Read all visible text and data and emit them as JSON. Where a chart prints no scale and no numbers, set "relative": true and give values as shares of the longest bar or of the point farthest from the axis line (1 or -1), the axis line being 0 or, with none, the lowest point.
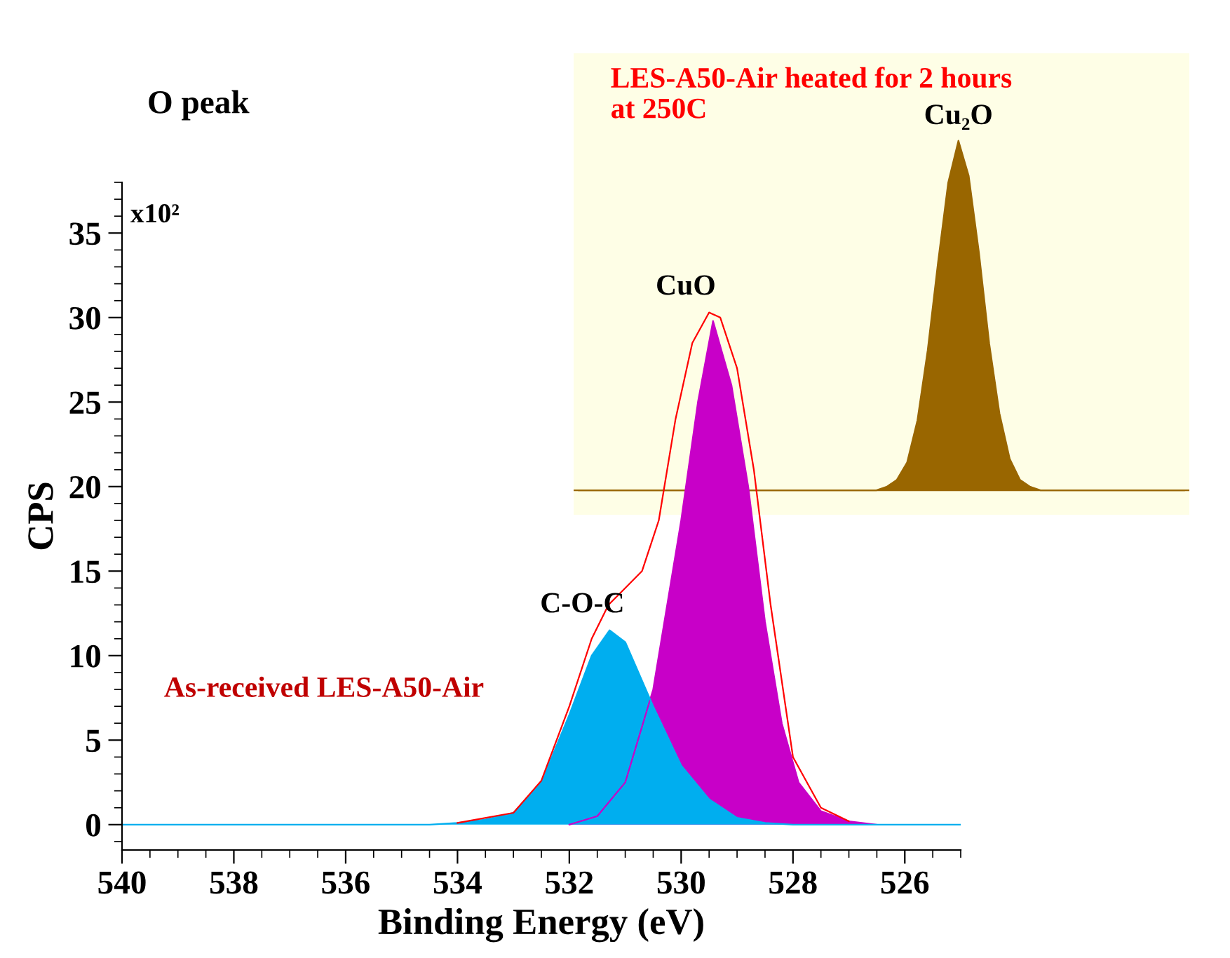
{
  "chart_data": [
    {
      "type": "area",
      "relative": true,
      "title": "LES-A50-Air heated for 2 hours\nat 250C",
      "categories": [
        null,
        null,
        null,
        null,
        null,
        null,
        null,
        null,
        null,
        null,
        null,
        null,
        null,
        null,
        null,
        null,
        null,
        null,
        null,
        null,
        null,
        null,
        null,
        null,
        null,
        null,
        null,
        null,
        null,
        null,
        null,
        null,
        null,
        null,
        null,
        null,
        null,
        null,
        null,
        null,
        null,
        null,
        null,
        null,
        null,
        null,
        null,
        null,
        null,
        null,
        null,
        null,
        null,
        null,
        null,
        null,
        null,
        null,
        null,
        null
      ],
      "series": [
        {
          "color": "#996600",
          "values": [
            0,
            0,
            0,
            0,
            0,
            0,
            0,
            0,
            0,
            0,
            0,
            0,
            0,
            0,
            0,
            0,
            0,
            0,
            0,
            0,
            0,
            0,
            0,
            0,
            0,
            0,
            0,
            0,
            0,
            0,
            0.01,
            0.03,
            0.08,
            0.2,
            0.4,
            0.65,
            0.88,
            1,
            0.9,
            0.68,
            0.42,
            0.22,
            0.09,
            0.03,
            0.01,
            0,
            0,
            0,
            0,
            0,
            0,
            0,
            0,
            0,
            0,
            0,
            0,
            0,
            0,
            0
          ]
        }
      ],
      "annotations": [
        "Cu₂O"
      ]
    },
    {
      "type": "area",
      "title": "O peak",
      "xlabel": "Binding Energy (eV)",
      "ylabel": "CPS",
      "xlim": [
        540,
        525
      ],
      "xticks": [
        540,
        538,
        536,
        534,
        532,
        530,
        528,
        526
      ],
      "ylim": [
        -1.5,
        38
      ],
      "yticks": [
        0,
        5,
        10,
        15,
        20,
        25,
        30,
        35
      ],
      "series": [
        {
          "color": "#c800c8",
          "x": [
            532,
            531.5,
            531,
            530.5,
            530,
            529.7,
            529.43,
            529.1,
            528.8,
            528.5,
            528.2,
            527.9,
            527.5,
            527,
            526.5
          ],
          "values": [
            0,
            0.5,
            2.5,
            8,
            18,
            25,
            29.8,
            26,
            20,
            12,
            6,
            2.5,
            0.8,
            0.2,
            0
          ]
        },
        {
          "color": "#00aeef",
          "x": [
            540,
            535,
            534.5,
            534,
            533.5,
            533,
            532.5,
            532,
            531.6,
            531.28,
            531,
            530.5,
            530,
            529.5,
            529,
            528.5,
            528,
            526,
            525
          ],
          "values": [
            0,
            0,
            0,
            0.1,
            0.3,
            0.7,
            2.5,
            6.5,
            10,
            11.5,
            10.8,
            7,
            3.5,
            1.5,
            0.4,
            0.1,
            0,
            0,
            0
          ]
        },
        {
          "type": "line",
          "color": "#ff0000",
          "x": [
            534,
            533,
            532.5,
            532,
            531.6,
            531.3,
            531,
            530.7,
            530.4,
            530.1,
            529.8,
            529.5,
            529.3,
            529,
            528.7,
            528.4,
            528,
            527.5,
            527
          ],
          "values": [
            0.1,
            0.7,
            2.6,
            7,
            11,
            13,
            14,
            15,
            18,
            24,
            28.5,
            30.3,
            30,
            27,
            21,
            13,
            4,
            1,
            0.2
          ]
        }
      ],
      "annotations": [
        "x10²",
        {
          "text": "As-received LES-A50-Air"
        },
        {
          "text": "C-O-C",
          "x": 531.28,
          "y": 11.5
        },
        {
          "text": "CuO",
          "x": 529.43,
          "y": 30.3
        }
      ]
    }
  ]
}
